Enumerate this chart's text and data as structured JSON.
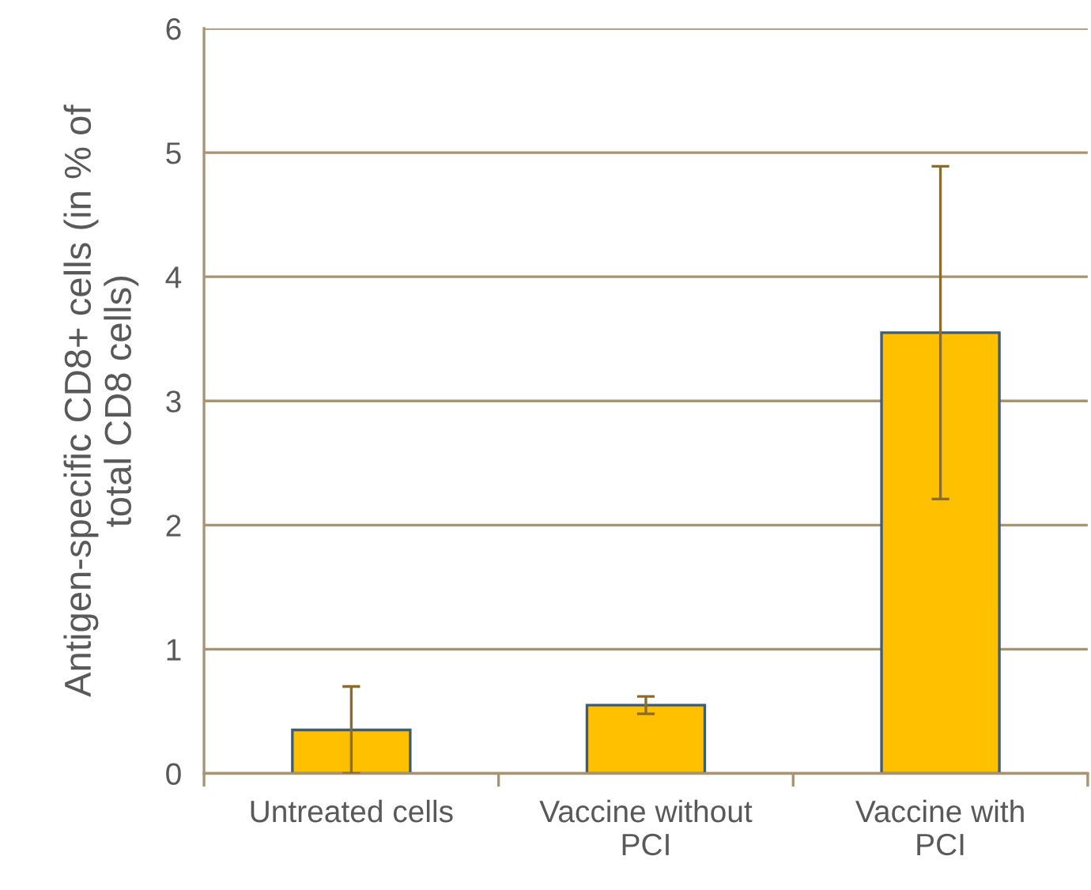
{
  "chart_data": {
    "type": "bar",
    "ylabel": "Antigen-specific CD8+ cells (in % of\ntotal CD8 cells)",
    "categories": [
      "Untreated cells",
      "Vaccine without\nPCI",
      "Vaccine with\nPCI"
    ],
    "values": [
      0.35,
      0.55,
      3.55
    ],
    "errors": [
      0.35,
      0.07,
      1.34
    ],
    "color": "#ffc000",
    "ylim": [
      0,
      6
    ],
    "yticks": [
      0,
      1,
      2,
      3,
      4,
      5,
      6
    ],
    "grid": "y"
  }
}
